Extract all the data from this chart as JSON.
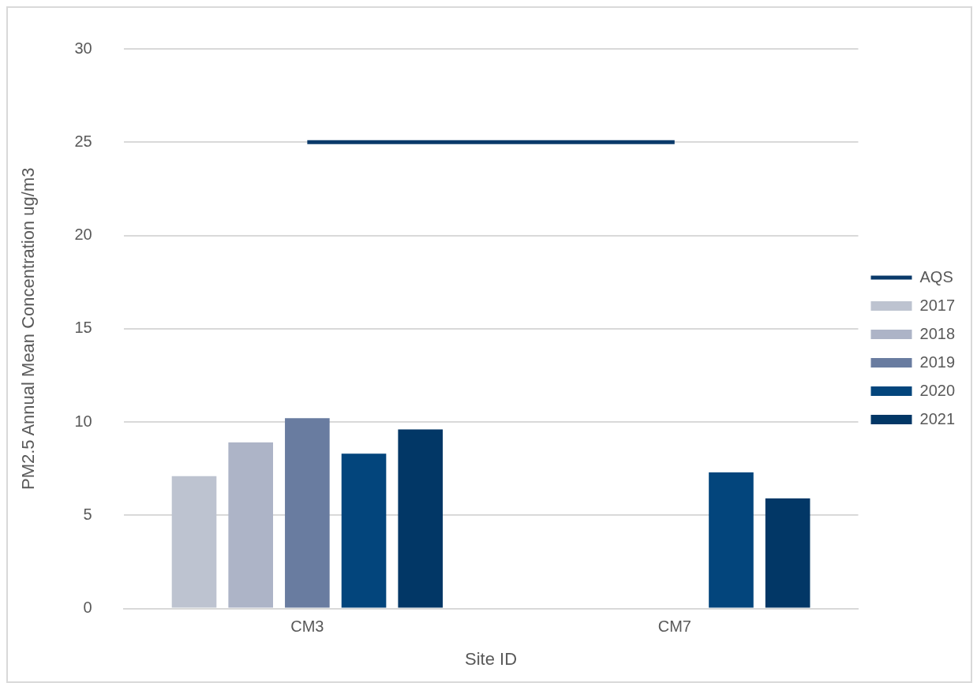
{
  "chart_data": {
    "type": "bar",
    "xlabel": "Site ID",
    "ylabel": "PM2.5 Annual Mean Concentration ug/m3",
    "categories": [
      "CM3",
      "CM7"
    ],
    "series": [
      {
        "name": "2017",
        "color": "#bdc3d0",
        "values": [
          7.1,
          null
        ]
      },
      {
        "name": "2018",
        "color": "#adb4c7",
        "values": [
          8.9,
          null
        ]
      },
      {
        "name": "2019",
        "color": "#697ca0",
        "values": [
          10.2,
          null
        ]
      },
      {
        "name": "2020",
        "color": "#03457c",
        "values": [
          8.3,
          7.3
        ]
      },
      {
        "name": "2021",
        "color": "#023766",
        "values": [
          9.6,
          5.9
        ]
      },
      {
        "name": "AQS",
        "type": "line",
        "color": "#0a3a6a",
        "values": [
          25,
          25
        ]
      }
    ],
    "ylim": [
      0,
      30
    ],
    "yticks": [
      0,
      5,
      10,
      15,
      20,
      25,
      30
    ],
    "grid": "y",
    "legend": "right"
  }
}
